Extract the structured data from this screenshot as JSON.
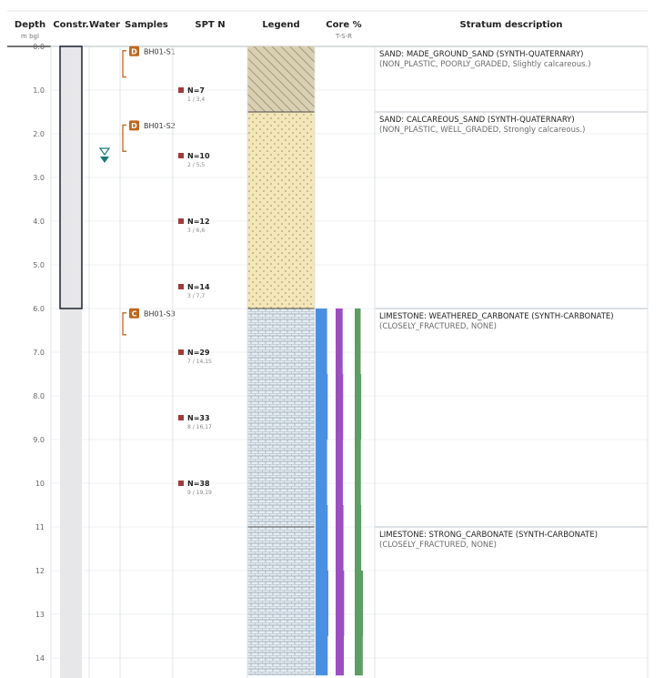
{
  "columns": {
    "depth": {
      "label": "Depth",
      "unit": "m bgl"
    },
    "construction": {
      "label": "Constr."
    },
    "water": {
      "label": "Water"
    },
    "samples": {
      "label": "Samples"
    },
    "spt": {
      "label": "SPT N"
    },
    "legend": {
      "label": "Legend"
    },
    "core": {
      "label": "Core %",
      "sub": "T-S-R"
    },
    "description": {
      "label": "Stratum description"
    }
  },
  "depth_axis": {
    "min": 0.0,
    "max": 14.4,
    "ticks": [
      {
        "value": 0,
        "label": "0.0"
      },
      {
        "value": 1,
        "label": "1.0"
      },
      {
        "value": 2,
        "label": "2.0"
      },
      {
        "value": 3,
        "label": "3.0"
      },
      {
        "value": 4,
        "label": "4.0"
      },
      {
        "value": 5,
        "label": "5.0"
      },
      {
        "value": 6,
        "label": "6.0"
      },
      {
        "value": 7,
        "label": "7.0"
      },
      {
        "value": 8,
        "label": "8.0"
      },
      {
        "value": 9,
        "label": "9.0"
      },
      {
        "value": 10,
        "label": "10"
      },
      {
        "value": 11,
        "label": "11"
      },
      {
        "value": 12,
        "label": "12"
      },
      {
        "value": 13,
        "label": "13"
      },
      {
        "value": 14,
        "label": "14"
      }
    ]
  },
  "construction": {
    "casing_top": 0.0,
    "casing_base": 6.0
  },
  "water": {
    "strike_depth": 2.5,
    "color": "#1a7a74"
  },
  "samples": [
    {
      "type": "D",
      "id": "BH01-S1",
      "top": 0.1,
      "base": 0.7
    },
    {
      "type": "D",
      "id": "BH01-S2",
      "top": 1.8,
      "base": 2.4
    },
    {
      "type": "C",
      "id": "BH01-S3",
      "top": 6.1,
      "base": 6.6
    }
  ],
  "spt": [
    {
      "depth": 1.0,
      "n": "N=7",
      "detail": "1 / 3,4"
    },
    {
      "depth": 2.5,
      "n": "N=10",
      "detail": "2 / 5,5"
    },
    {
      "depth": 4.0,
      "n": "N=12",
      "detail": "3 / 6,6"
    },
    {
      "depth": 5.5,
      "n": "N=14",
      "detail": "3 / 7,7"
    },
    {
      "depth": 7.0,
      "n": "N=29",
      "detail": "7 / 14,15"
    },
    {
      "depth": 8.5,
      "n": "N=33",
      "detail": "8 / 16,17"
    },
    {
      "depth": 10.0,
      "n": "N=38",
      "detail": "9 / 19,19"
    }
  ],
  "strata": [
    {
      "top": 0.0,
      "base": 1.5,
      "pattern": "hatch",
      "line1": "SAND: MADE_GROUND_SAND (SYNTH-QUATERNARY)",
      "line2": "(NON_PLASTIC, POORLY_GRADED, Slightly calcareous.)"
    },
    {
      "top": 1.5,
      "base": 6.0,
      "pattern": "dots",
      "line1": "SAND: CALCAREOUS_SAND (SYNTH-QUATERNARY)",
      "line2": "(NON_PLASTIC, WELL_GRADED, Strongly calcareous.)"
    },
    {
      "top": 6.0,
      "base": 11.0,
      "pattern": "brick",
      "line1": "LIMESTONE: WEATHERED_CARBONATE (SYNTH-CARBONATE)",
      "line2": "(CLOSELY_FRACTURED, NONE)"
    },
    {
      "top": 11.0,
      "base": 14.4,
      "pattern": "brick",
      "line1": "LIMESTONE: STRONG_CARBONATE (SYNTH-CARBONATE)",
      "line2": "(CLOSELY_FRACTURED, NONE)"
    }
  ],
  "core_runs": [
    {
      "top": 6.0,
      "base": 7.5,
      "tcr": 90,
      "scr": 70,
      "rqd": 50
    },
    {
      "top": 7.5,
      "base": 9.0,
      "tcr": 95,
      "scr": 75,
      "rqd": 55
    },
    {
      "top": 9.0,
      "base": 10.5,
      "tcr": 90,
      "scr": 72,
      "rqd": 52
    },
    {
      "top": 10.5,
      "base": 12.0,
      "tcr": 95,
      "scr": 78,
      "rqd": 55
    },
    {
      "top": 12.0,
      "base": 13.5,
      "tcr": 100,
      "scr": 85,
      "rqd": 70
    },
    {
      "top": 13.5,
      "base": 14.4,
      "tcr": 95,
      "scr": 82,
      "rqd": 68
    }
  ],
  "colors": {
    "tcr": "#4a90e2",
    "scr": "#9b4fc0",
    "rqd": "#5c9e63",
    "sample": "#c0661e",
    "spt": "#a33a3a",
    "casing_fill": "#e7e7ea",
    "hatch_bg": "#d9d0b4",
    "dots_bg": "#f3e6b8",
    "brick_bg": "#e6edf2"
  }
}
